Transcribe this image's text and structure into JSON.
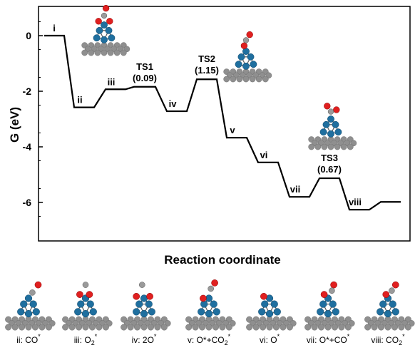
{
  "chart_data": {
    "type": "line",
    "subtype": "free-energy-step-diagram",
    "xlabel": "Reaction coordinate",
    "ylabel": "G (eV)",
    "ylim": [
      -7.5,
      1.0
    ],
    "yticks": [
      0,
      -2,
      -4,
      -6
    ],
    "grid": false,
    "legend": "none",
    "line_color": "#000000",
    "states": [
      {
        "label": "i",
        "G": 0.0
      },
      {
        "label": "ii",
        "G": -2.58
      },
      {
        "label": "iii",
        "G": -1.93
      },
      {
        "label": "TS1",
        "G": -1.84,
        "barrier": "(0.09)"
      },
      {
        "label": "iv",
        "G": -2.72
      },
      {
        "label": "TS2",
        "G": -1.57,
        "barrier": "(1.15)"
      },
      {
        "label": "v",
        "G": -3.67
      },
      {
        "label": "vi",
        "G": -4.56
      },
      {
        "label": "vii",
        "G": -5.8
      },
      {
        "label": "TS3",
        "G": -5.13,
        "barrier": "(0.67)"
      },
      {
        "label": "viii",
        "G": -6.26
      },
      {
        "label": "",
        "G": -5.98
      }
    ]
  },
  "structure_captions": [
    {
      "id": "ii",
      "base": "ii: CO",
      "sup": "*",
      "sub": ""
    },
    {
      "id": "iii",
      "base": "iii: O",
      "sub": "2",
      "sup": "*"
    },
    {
      "id": "iv",
      "base": "iv: 2O",
      "sup": "*",
      "sub": ""
    },
    {
      "id": "v",
      "base": "v: O*+CO",
      "sub": "2",
      "sup": "*"
    },
    {
      "id": "vi",
      "base": "vi: O",
      "sup": "*",
      "sub": ""
    },
    {
      "id": "vii",
      "base": "vii: O*+CO",
      "sup": "*",
      "sub": ""
    },
    {
      "id": "viii",
      "base": "viii: CO",
      "sub": "2",
      "sup": "*"
    }
  ],
  "colors": {
    "substrate_atom": "#8f8f8f",
    "cluster_atom": "#1f6f9f",
    "oxygen_atom": "#e02020",
    "bond": "#555555"
  }
}
